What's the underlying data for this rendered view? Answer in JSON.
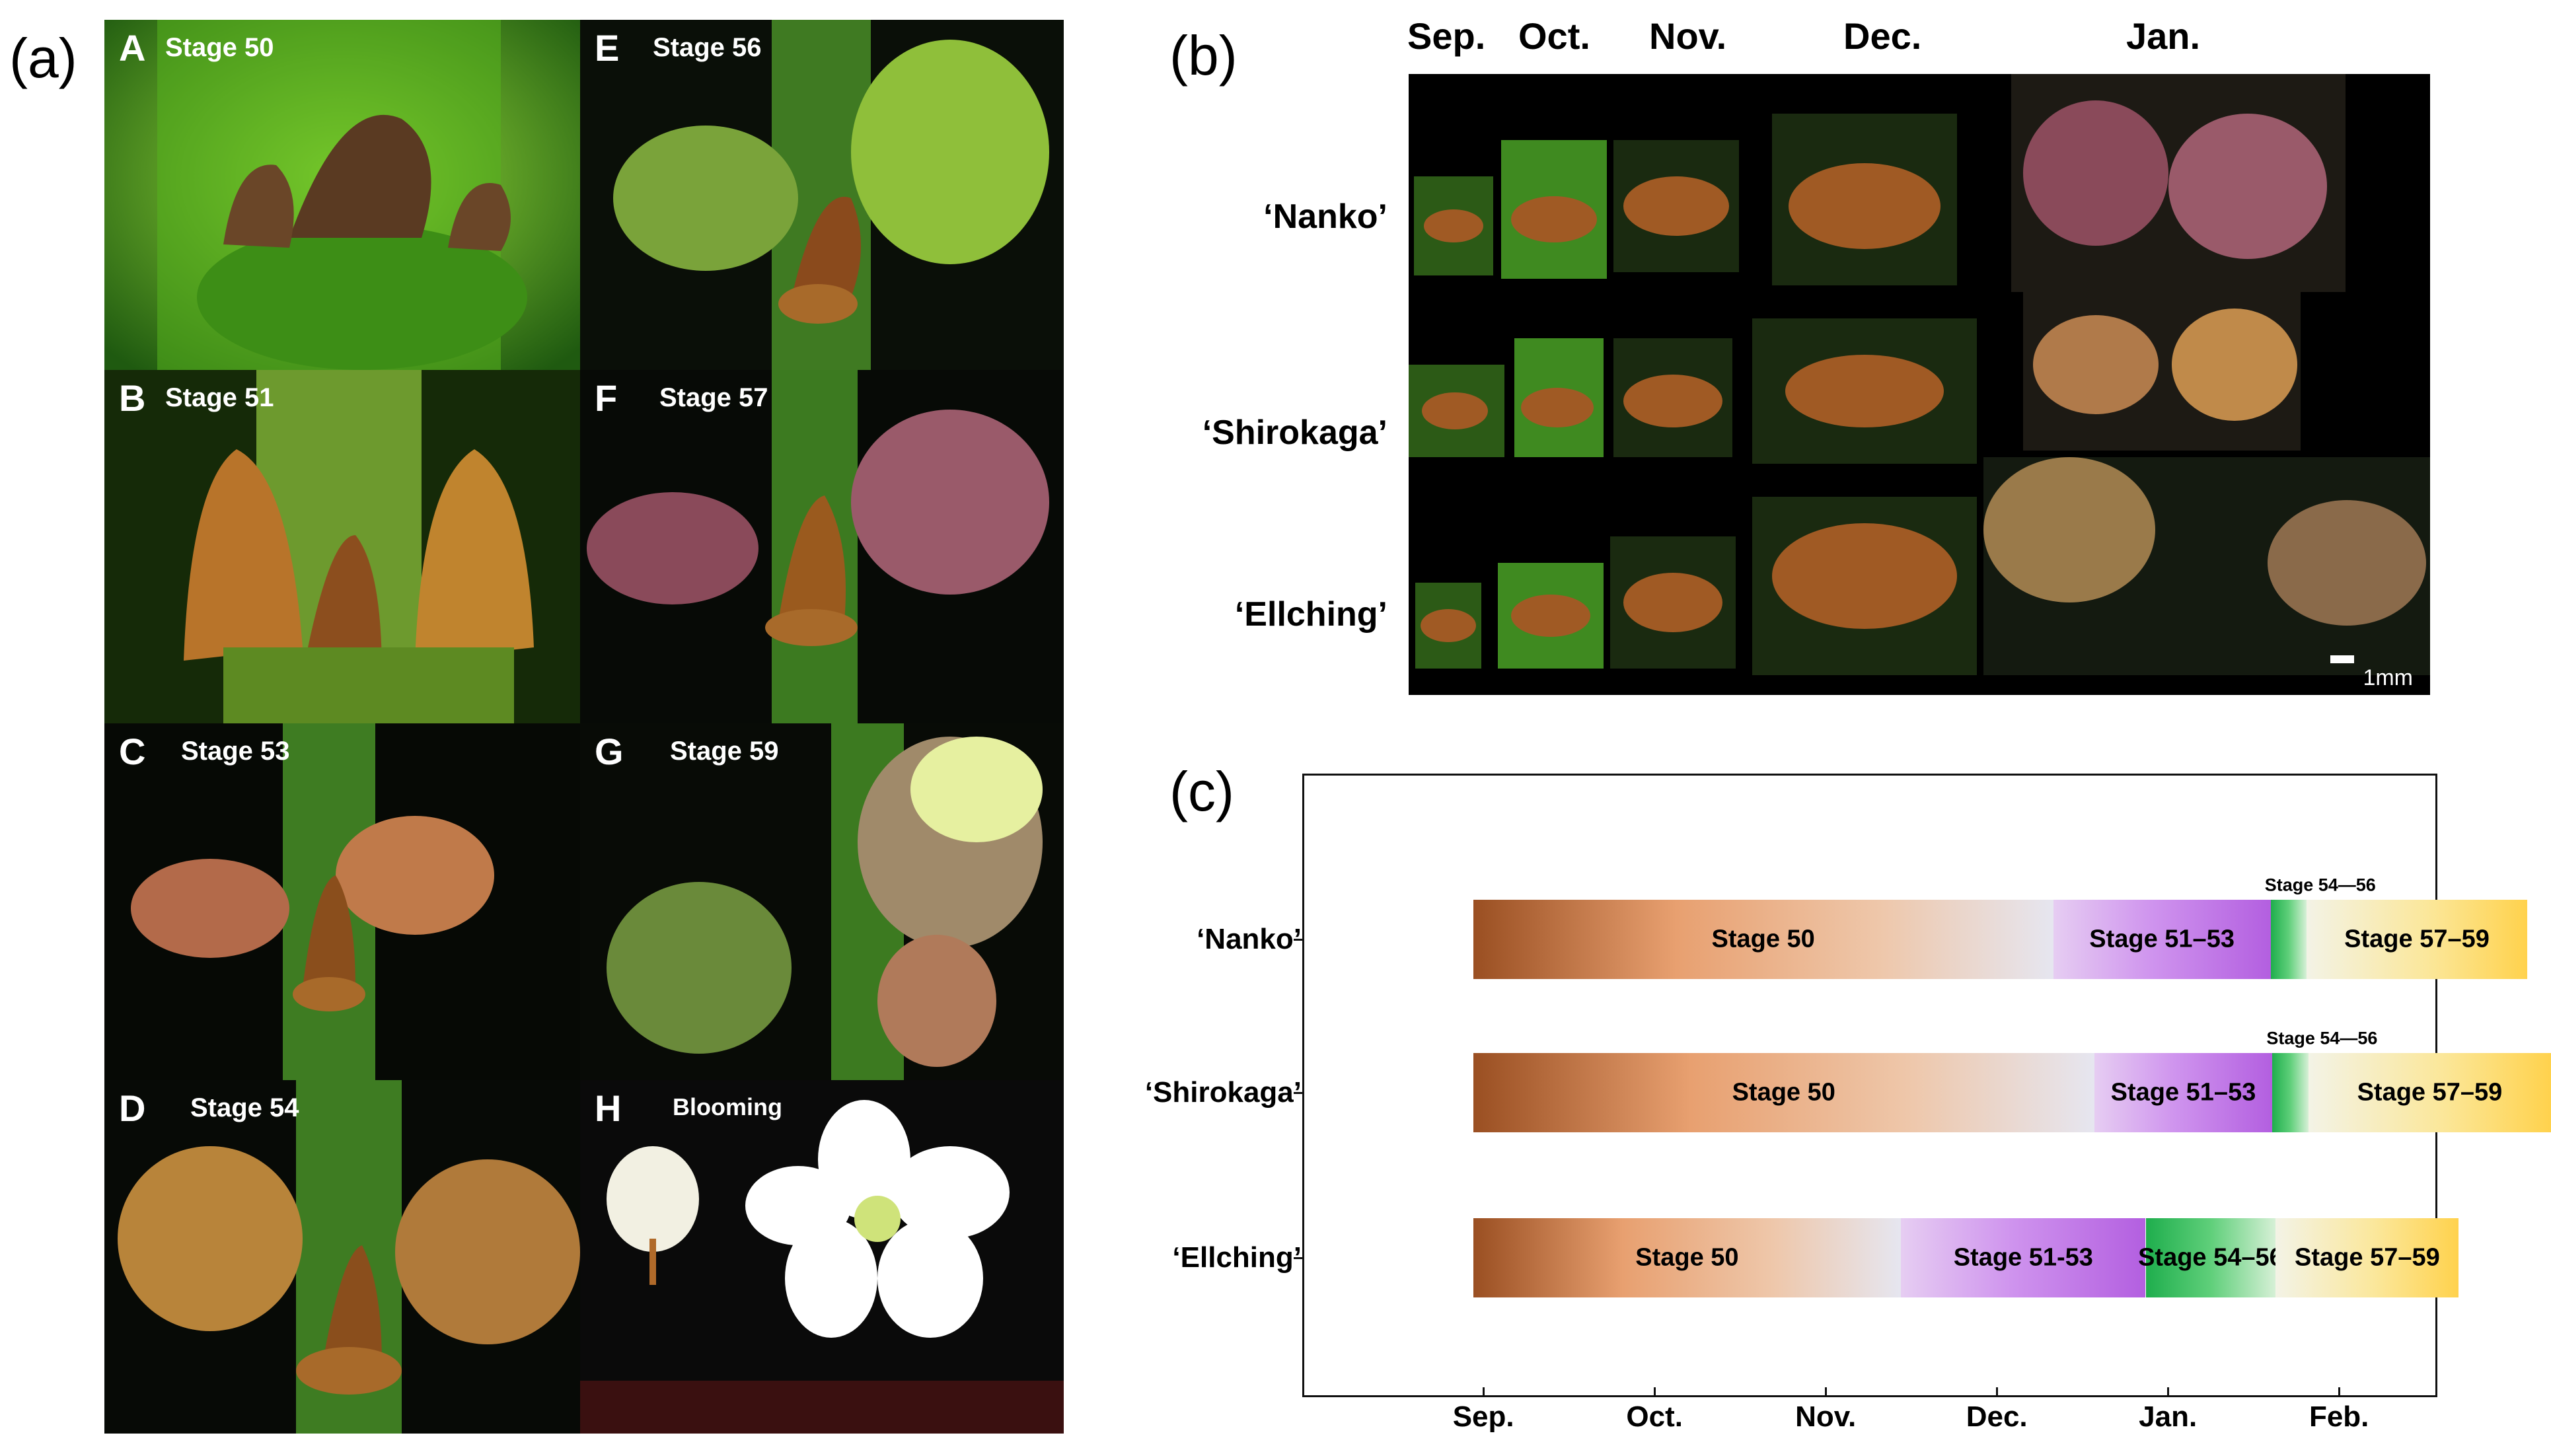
{
  "panel_labels": {
    "a": "(a)",
    "b": "(b)",
    "c": "(c)"
  },
  "panel_a": {
    "tiles": [
      {
        "letter": "A",
        "stage": "Stage 50"
      },
      {
        "letter": "B",
        "stage": "Stage 51"
      },
      {
        "letter": "C",
        "stage": "Stage 53"
      },
      {
        "letter": "D",
        "stage": "Stage 54"
      },
      {
        "letter": "E",
        "stage": "Stage 56"
      },
      {
        "letter": "F",
        "stage": "Stage 57"
      },
      {
        "letter": "G",
        "stage": "Stage 59"
      },
      {
        "letter": "H",
        "stage": "Blooming"
      }
    ]
  },
  "panel_b": {
    "months": [
      "Sep.",
      "Oct.",
      "Nov.",
      "Dec.",
      "Jan."
    ],
    "cultivars": [
      "‘Nanko’",
      "‘Shirokaga’",
      "‘Ellching’"
    ],
    "scale_label": "1mm"
  },
  "chart_data": {
    "type": "gantt",
    "title": "",
    "x_axis_months": [
      "Sep.",
      "Oct.",
      "Nov.",
      "Dec.",
      "Jan.",
      "Feb."
    ],
    "x_unit": "months since Aug. 1",
    "cultivars": [
      {
        "name": "‘Nanko’",
        "segments": [
          {
            "label": "Stage 50",
            "start": -0.04,
            "end": 3.35,
            "color": "#9a4f22"
          },
          {
            "label": "Stage 51–53",
            "start": 3.35,
            "end": 4.62,
            "color": "#b35fe0"
          },
          {
            "label": "Stage 54—56",
            "start": 4.62,
            "end": 4.83,
            "color": "#1fae4d"
          },
          {
            "label": "Stage 57–59",
            "start": 4.83,
            "end": 6.12,
            "color": "#ffd24d"
          }
        ]
      },
      {
        "name": "‘Shirokaga’",
        "segments": [
          {
            "label": "Stage 50",
            "start": -0.04,
            "end": 3.59,
            "color": "#9a4f22"
          },
          {
            "label": "Stage 51–53",
            "start": 3.59,
            "end": 4.63,
            "color": "#b35fe0"
          },
          {
            "label": "Stage 54—56",
            "start": 4.63,
            "end": 4.84,
            "color": "#1fae4d"
          },
          {
            "label": "Stage 57–59",
            "start": 4.84,
            "end": 6.26,
            "color": "#ffd24d"
          }
        ]
      },
      {
        "name": "‘Ellching’",
        "segments": [
          {
            "label": "Stage 50",
            "start": -0.04,
            "end": 2.46,
            "color": "#9a4f22"
          },
          {
            "label": "Stage 51-53",
            "start": 2.46,
            "end": 3.89,
            "color": "#b35fe0"
          },
          {
            "label": "Stage 54–56",
            "start": 3.89,
            "end": 4.65,
            "color": "#1fae4d"
          },
          {
            "label": "Stage 57–59",
            "start": 4.65,
            "end": 5.72,
            "color": "#ffd24d"
          }
        ]
      }
    ]
  }
}
